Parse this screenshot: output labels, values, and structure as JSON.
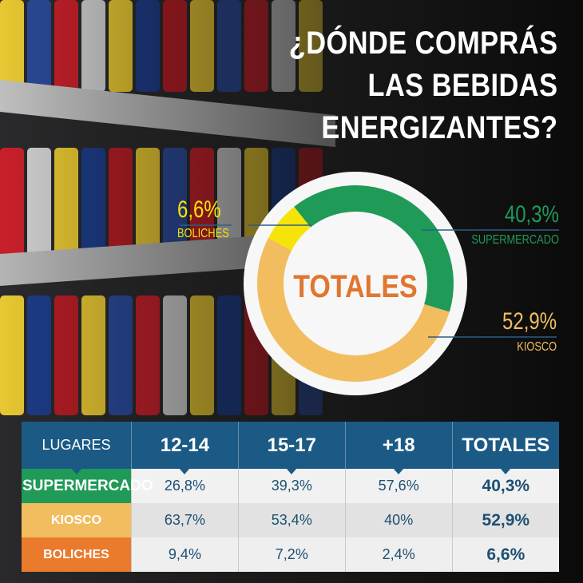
{
  "title_lines": [
    "¿DÓNDE COMPRÁS",
    "LAS BEBIDAS",
    "ENERGIZANTES?"
  ],
  "chart_data": {
    "type": "pie",
    "donut": true,
    "center_label": "TOTALES",
    "slices": [
      {
        "label": "SUPERMERCADO",
        "value": 40.3,
        "display": "40,3%",
        "color": "#1f9a57"
      },
      {
        "label": "KIOSCO",
        "value": 52.9,
        "display": "52,9%",
        "color": "#f2bd5f"
      },
      {
        "label": "BOLICHES",
        "value": 6.6,
        "display": "6,6%",
        "color": "#f5e30a"
      }
    ]
  },
  "table": {
    "headers": [
      "LUGARES",
      "12-14",
      "15-17",
      "+18",
      "TOTALES"
    ],
    "rows": [
      {
        "label": "SUPERMERCADO",
        "color": "#1f9a57",
        "values": [
          "26,8%",
          "39,3%",
          "57,6%",
          "40,3%"
        ]
      },
      {
        "label": "KIOSCO",
        "color": "#f2bd5f",
        "values": [
          "63,7%",
          "53,4%",
          "40%",
          "52,9%"
        ]
      },
      {
        "label": "BOLICHES",
        "color": "#ea7a2c",
        "values": [
          "9,4%",
          "7,2%",
          "2,4%",
          "6,6%"
        ]
      }
    ]
  },
  "colors": {
    "header": "#1b5a85",
    "center_text": "#e0762f",
    "text_blue": "#1d4f72"
  }
}
